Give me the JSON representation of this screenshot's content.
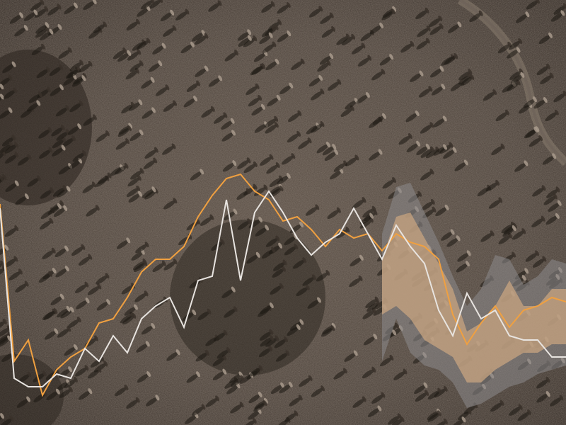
{
  "chart_data": {
    "type": "line",
    "title": "",
    "xlabel": "",
    "ylabel": "",
    "x": [
      0,
      1,
      2,
      3,
      4,
      5,
      6,
      7,
      8,
      9,
      10,
      11,
      12,
      13,
      14,
      15,
      16,
      17,
      18,
      19,
      20,
      21,
      22,
      23,
      24,
      25,
      26,
      27,
      28,
      29,
      30,
      31,
      32,
      33,
      34,
      35,
      36,
      37,
      38,
      39,
      40
    ],
    "xlim": [
      0,
      40
    ],
    "ylim": [
      0,
      100
    ],
    "grid": false,
    "legend": "none",
    "forecast_start_index": 27,
    "series": [
      {
        "color": "#f0a040",
        "values": [
          52,
          15,
          20,
          7,
          13,
          16,
          18,
          24,
          25,
          30,
          36,
          39,
          39,
          42,
          49,
          54,
          58,
          59,
          55,
          53,
          48,
          49,
          46,
          42,
          46,
          44,
          45,
          41,
          45,
          43,
          42,
          39,
          26,
          19,
          24,
          28,
          23,
          27,
          28,
          30,
          29
        ]
      },
      {
        "color": "#e8e4e0",
        "values": [
          51,
          11,
          9,
          9,
          12,
          11,
          18,
          15,
          21,
          17,
          25,
          28,
          30,
          23,
          34,
          35,
          53,
          34,
          50,
          55,
          50,
          44,
          40,
          43,
          45,
          51,
          45,
          39,
          47,
          42,
          38,
          27,
          21,
          31,
          25,
          27,
          21,
          20,
          20,
          16,
          16
        ]
      }
    ],
    "bands": [
      {
        "name": "outer",
        "color": "#8c8a8c",
        "lower": [
          null,
          null,
          null,
          null,
          null,
          null,
          null,
          null,
          null,
          null,
          null,
          null,
          null,
          null,
          null,
          null,
          null,
          null,
          null,
          null,
          null,
          null,
          null,
          null,
          null,
          null,
          null,
          15,
          25,
          17,
          14,
          13,
          10,
          4,
          5,
          7,
          9,
          10,
          12,
          13,
          14
        ],
        "upper": [
          null,
          null,
          null,
          null,
          null,
          null,
          null,
          null,
          null,
          null,
          null,
          null,
          null,
          null,
          null,
          null,
          null,
          null,
          null,
          null,
          null,
          null,
          null,
          null,
          null,
          null,
          null,
          45,
          56,
          57,
          50,
          43,
          35,
          28,
          32,
          40,
          39,
          33,
          35,
          39,
          38
        ]
      },
      {
        "name": "inner",
        "color": "#c8a480",
        "lower": [
          null,
          null,
          null,
          null,
          null,
          null,
          null,
          null,
          null,
          null,
          null,
          null,
          null,
          null,
          null,
          null,
          null,
          null,
          null,
          null,
          null,
          null,
          null,
          null,
          null,
          null,
          null,
          26,
          28,
          25,
          20,
          18,
          16,
          10,
          10,
          13,
          15,
          17,
          17,
          19,
          19
        ],
        "upper": [
          null,
          null,
          null,
          null,
          null,
          null,
          null,
          null,
          null,
          null,
          null,
          null,
          null,
          null,
          null,
          null,
          null,
          null,
          null,
          null,
          null,
          null,
          null,
          null,
          null,
          null,
          null,
          39,
          49,
          50,
          44,
          38,
          32,
          22,
          24,
          28,
          34,
          28,
          28,
          32,
          32
        ]
      }
    ]
  }
}
